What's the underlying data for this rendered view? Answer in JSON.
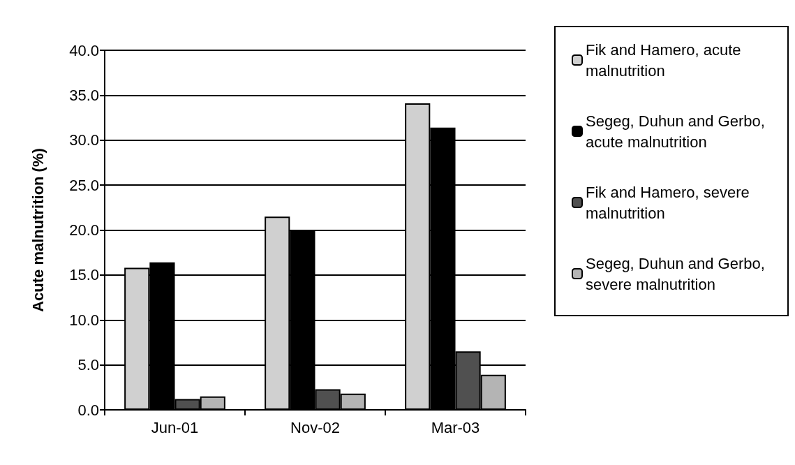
{
  "chart_data": {
    "type": "bar",
    "ylabel": "Acute malnutrition (%)",
    "categories": [
      "Jun-01",
      "Nov-02",
      "Mar-03"
    ],
    "series": [
      {
        "name": "Fik and Hamero, acute malnutrition",
        "color": "#d0d0d0",
        "values": [
          15.8,
          21.5,
          34.1
        ]
      },
      {
        "name": "Segeg, Duhun and Gerbo, acute malnutrition",
        "color": "#000000",
        "values": [
          16.4,
          20.0,
          31.4
        ]
      },
      {
        "name": "Fik and Hamero, severe malnutrition",
        "color": "#505050",
        "values": [
          1.2,
          2.3,
          6.5
        ]
      },
      {
        "name": "Segeg, Duhun and Gerbo, severe malnutrition",
        "color": "#b4b4b4",
        "values": [
          1.5,
          1.8,
          3.9
        ]
      }
    ],
    "ylim": [
      0,
      40
    ],
    "yticks": [
      {
        "value": 0,
        "label": "0.0"
      },
      {
        "value": 5,
        "label": "5.0"
      },
      {
        "value": 10,
        "label": "10.0"
      },
      {
        "value": 15,
        "label": "15.0"
      },
      {
        "value": 20,
        "label": "20.0"
      },
      {
        "value": 25,
        "label": "25.0"
      },
      {
        "value": 30,
        "label": "30.0"
      },
      {
        "value": 35,
        "label": "35.0"
      },
      {
        "value": 40,
        "label": "40.0"
      }
    ],
    "grid": "y",
    "legend": "right"
  }
}
